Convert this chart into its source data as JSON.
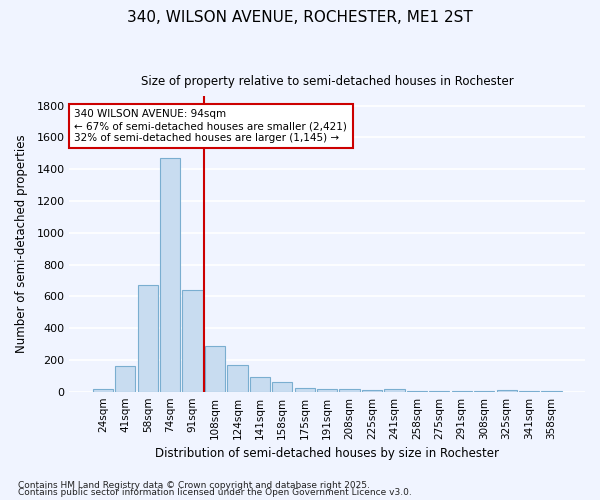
{
  "title1": "340, WILSON AVENUE, ROCHESTER, ME1 2ST",
  "title2": "Size of property relative to semi-detached houses in Rochester",
  "xlabel": "Distribution of semi-detached houses by size in Rochester",
  "ylabel": "Number of semi-detached properties",
  "categories": [
    "24sqm",
    "41sqm",
    "58sqm",
    "74sqm",
    "91sqm",
    "108sqm",
    "124sqm",
    "141sqm",
    "158sqm",
    "175sqm",
    "191sqm",
    "208sqm",
    "225sqm",
    "241sqm",
    "258sqm",
    "275sqm",
    "291sqm",
    "308sqm",
    "325sqm",
    "341sqm",
    "358sqm"
  ],
  "values": [
    20,
    160,
    670,
    1470,
    640,
    290,
    170,
    95,
    60,
    25,
    20,
    15,
    10,
    15,
    5,
    5,
    5,
    5,
    10,
    5,
    5
  ],
  "bar_color": "#c8dcf0",
  "bar_edge_color": "#7aaed0",
  "background_color": "#f0f4ff",
  "grid_color": "#ffffff",
  "red_line_x": 4.5,
  "annotation_text": "340 WILSON AVENUE: 94sqm\n← 67% of semi-detached houses are smaller (2,421)\n32% of semi-detached houses are larger (1,145) →",
  "annotation_box_facecolor": "#ffffff",
  "annotation_box_edgecolor": "#cc0000",
  "red_line_color": "#cc0000",
  "footer1": "Contains HM Land Registry data © Crown copyright and database right 2025.",
  "footer2": "Contains public sector information licensed under the Open Government Licence v3.0.",
  "ylim": [
    0,
    1860
  ],
  "yticks": [
    0,
    200,
    400,
    600,
    800,
    1000,
    1200,
    1400,
    1600,
    1800
  ]
}
